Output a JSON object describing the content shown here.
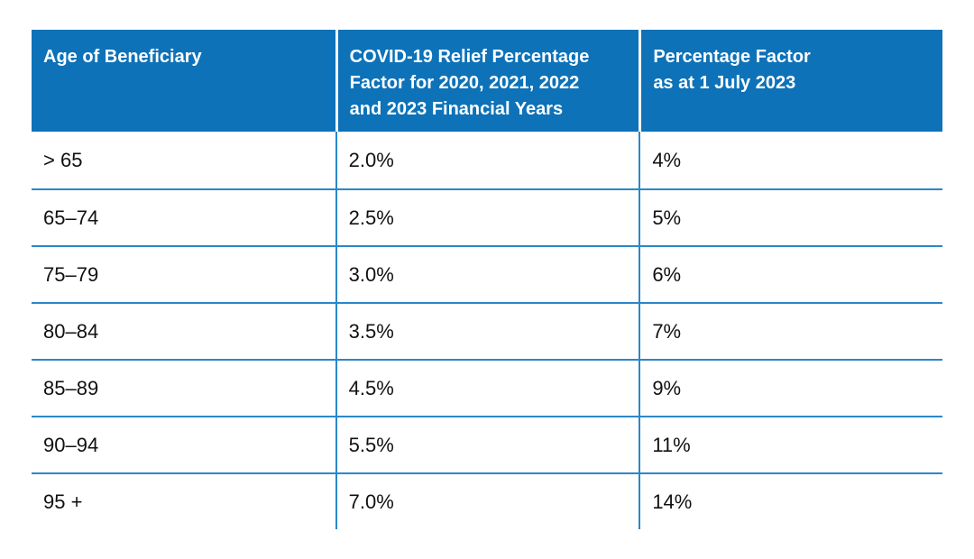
{
  "page": {
    "background_color": "#ffffff"
  },
  "table": {
    "header_bg_color": "#0d72b8",
    "header_text_color": "#ffffff",
    "grid_line_color": "#2b87c9",
    "body_text_color": "#111111",
    "columns": [
      {
        "label": "Age of Beneficiary"
      },
      {
        "label": "COVID-19 Relief Percentage\nFactor for 2020, 2021, 2022\nand 2023 Financial Years"
      },
      {
        "label": "Percentage Factor\nas at 1 July 2023"
      }
    ],
    "rows": [
      {
        "age": "> 65",
        "covid_relief_factor": "2.0%",
        "factor_1_july_2023": "4%"
      },
      {
        "age": "65–74",
        "covid_relief_factor": "2.5%",
        "factor_1_july_2023": "5%"
      },
      {
        "age": "75–79",
        "covid_relief_factor": "3.0%",
        "factor_1_july_2023": "6%"
      },
      {
        "age": "80–84",
        "covid_relief_factor": "3.5%",
        "factor_1_july_2023": "7%"
      },
      {
        "age": "85–89",
        "covid_relief_factor": "4.5%",
        "factor_1_july_2023": "9%"
      },
      {
        "age": "90–94",
        "covid_relief_factor": "5.5%",
        "factor_1_july_2023": "11%"
      },
      {
        "age": "95 +",
        "covid_relief_factor": "7.0%",
        "factor_1_july_2023": "14%"
      }
    ]
  },
  "chart_data": {
    "type": "table",
    "title": "",
    "columns": [
      "Age of Beneficiary",
      "COVID-19 Relief Percentage Factor for 2020, 2021, 2022 and 2023 Financial Years",
      "Percentage Factor as at 1 July 2023"
    ],
    "rows": [
      [
        "> 65",
        "2.0%",
        "4%"
      ],
      [
        "65–74",
        "2.5%",
        "5%"
      ],
      [
        "75–79",
        "3.0%",
        "6%"
      ],
      [
        "80–84",
        "3.5%",
        "7%"
      ],
      [
        "85–89",
        "4.5%",
        "9%"
      ],
      [
        "90–94",
        "5.5%",
        "11%"
      ],
      [
        "95 +",
        "7.0%",
        "14%"
      ]
    ]
  }
}
